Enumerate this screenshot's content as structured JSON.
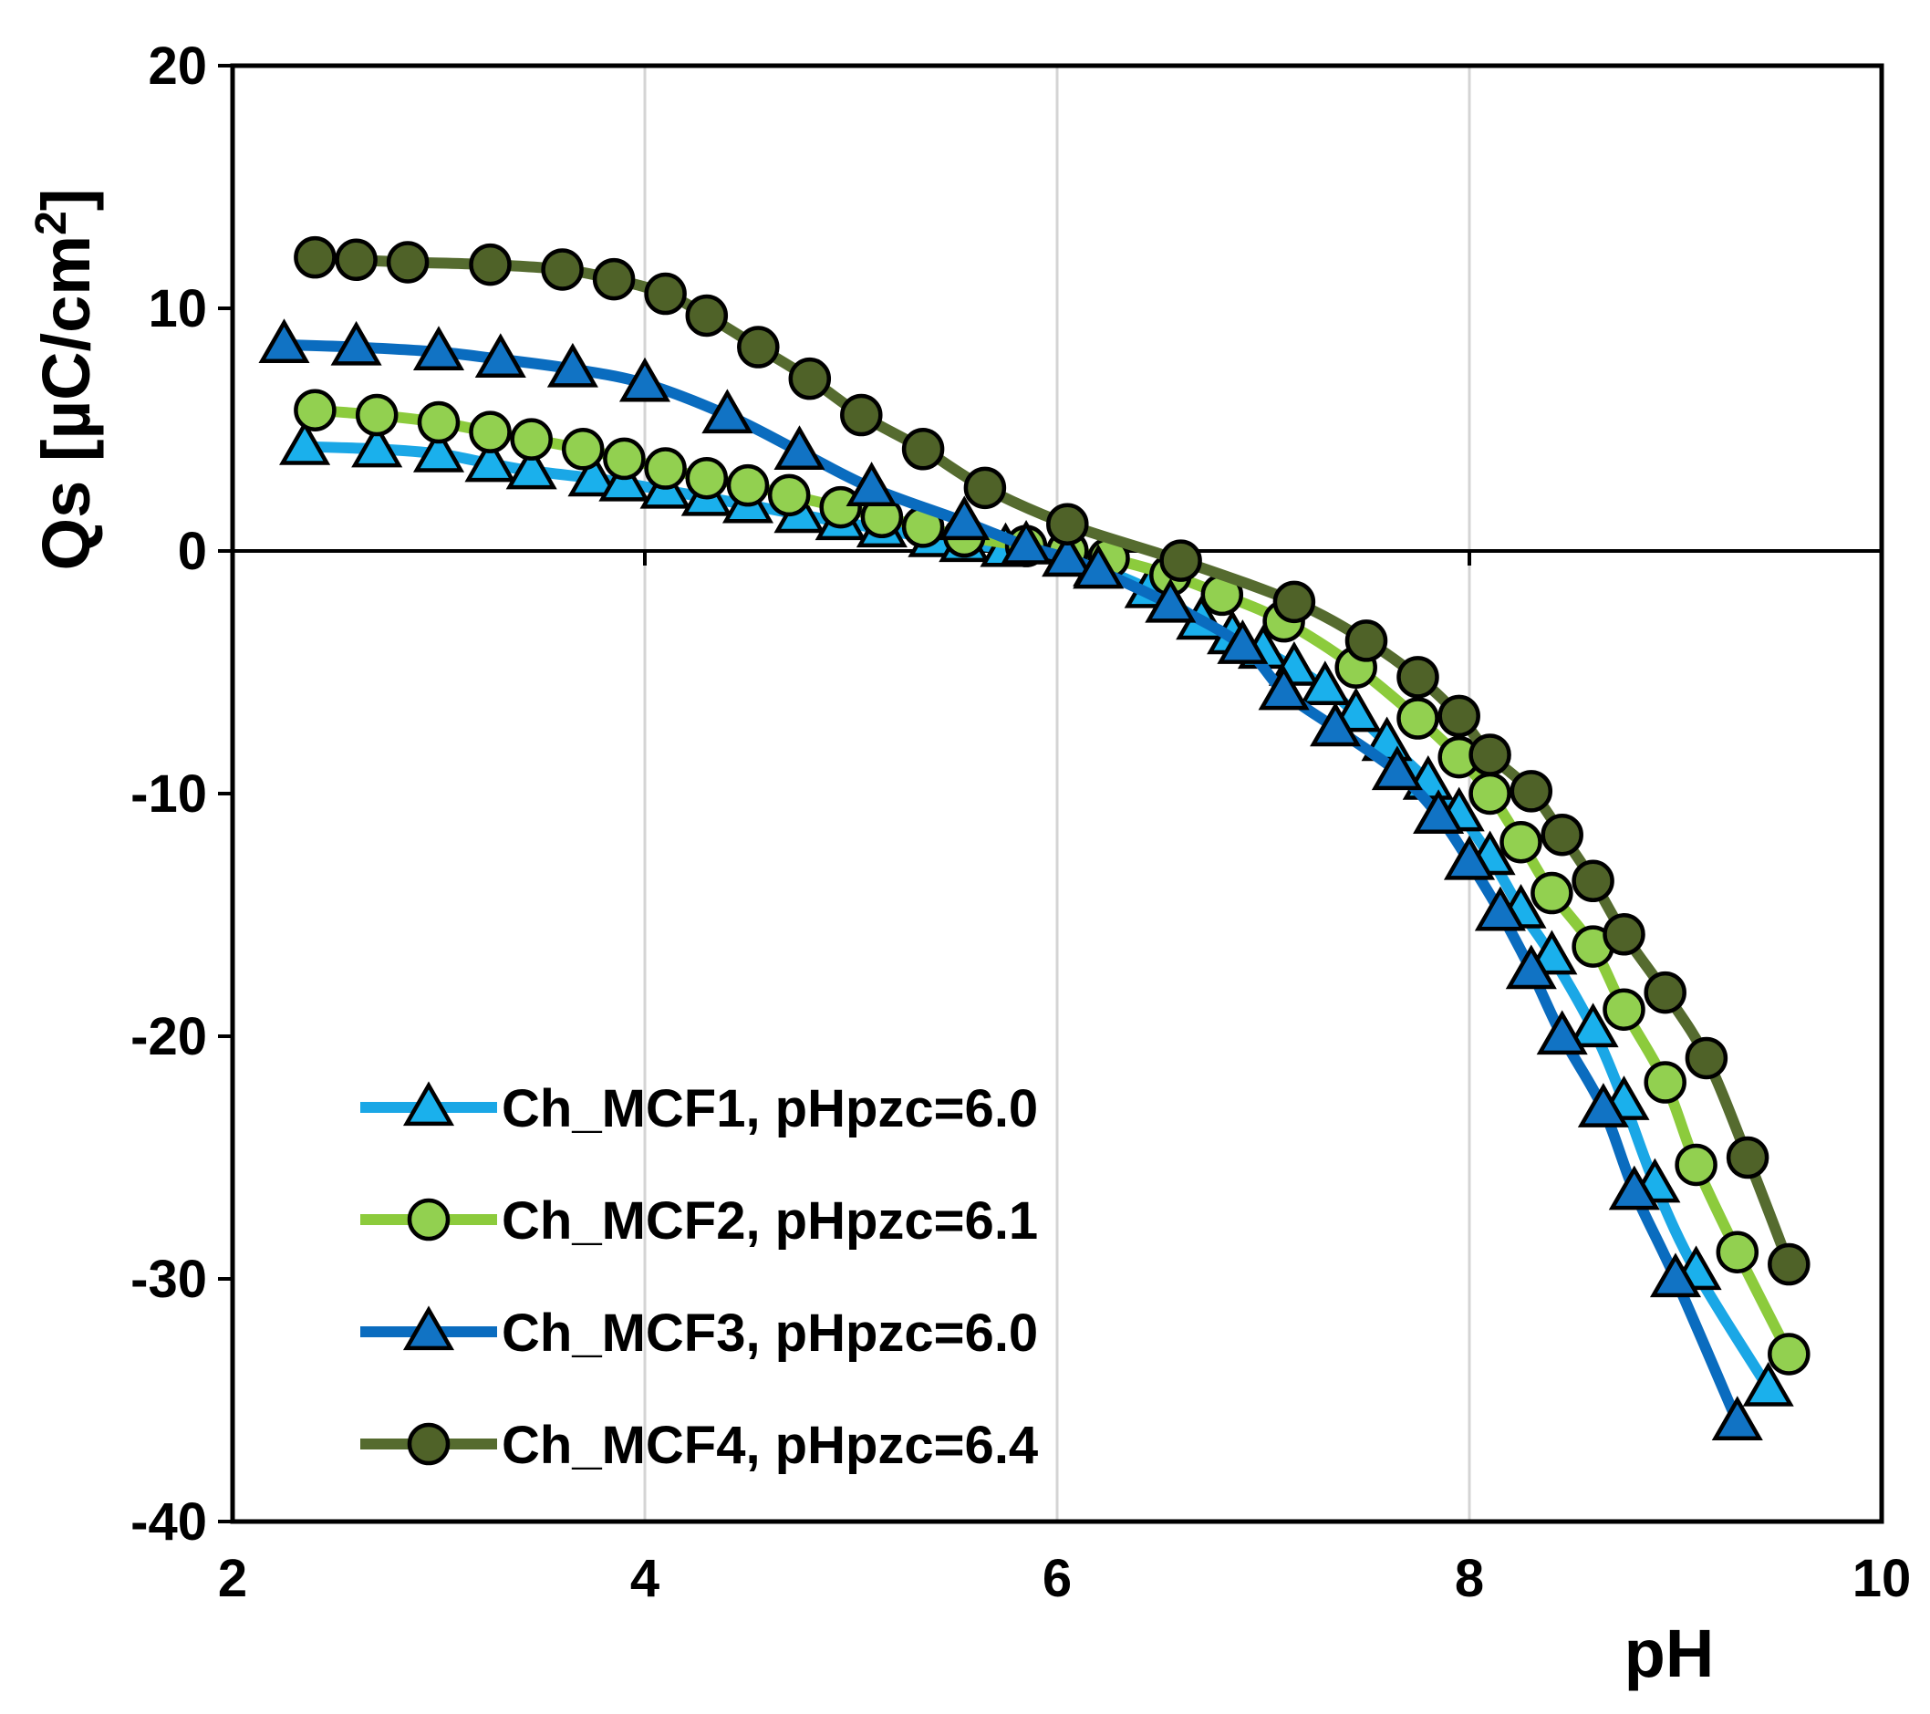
{
  "chart_data": {
    "type": "line",
    "title": "",
    "xlabel": "pH",
    "ylabel": "Qs [µC/cm²]",
    "ylabel_parts": {
      "base": "Qs [µC/cm",
      "sup": "2",
      "close": "]"
    },
    "xlim": [
      2,
      10
    ],
    "ylim": [
      -40,
      20
    ],
    "x_ticks": [
      2,
      4,
      6,
      8,
      10
    ],
    "y_ticks": [
      -40,
      -30,
      -20,
      -10,
      0,
      10,
      20
    ],
    "x_tick_labels": [
      "2",
      "4",
      "6",
      "8",
      "10"
    ],
    "y_tick_labels": [
      "-40",
      "-30",
      "-20",
      "-10",
      "0",
      "10",
      "20"
    ],
    "grid": "vertical",
    "legend_position": "bottom-left",
    "series": [
      {
        "name": "Ch_MCF1, pHpzc=6.0",
        "marker": "triangle",
        "line_color": "#1aa7e6",
        "marker_fill": "#1ab0ec",
        "x": [
          2.35,
          2.7,
          3.0,
          3.25,
          3.45,
          3.75,
          3.9,
          4.1,
          4.3,
          4.5,
          4.75,
          4.95,
          5.15,
          5.4,
          5.55,
          5.75,
          6.05,
          6.2,
          6.45,
          6.7,
          6.85,
          7.0,
          7.15,
          7.3,
          7.45,
          7.6,
          7.8,
          7.95,
          8.1,
          8.25,
          8.4,
          8.6,
          8.75,
          8.9,
          9.1,
          9.45
        ],
        "y": [
          4.3,
          4.2,
          4.0,
          3.6,
          3.3,
          3.0,
          2.8,
          2.5,
          2.2,
          1.9,
          1.5,
          1.2,
          0.9,
          0.5,
          0.3,
          0.1,
          -0.3,
          -0.7,
          -1.6,
          -2.9,
          -3.5,
          -4.1,
          -4.8,
          -5.6,
          -6.7,
          -7.9,
          -9.5,
          -10.8,
          -12.6,
          -14.8,
          -16.7,
          -19.7,
          -22.7,
          -26.1,
          -29.7,
          -34.5
        ]
      },
      {
        "name": "Ch_MCF2, pHpzc=6.1",
        "marker": "circle",
        "line_color": "#8ccb3c",
        "marker_fill": "#92d050",
        "x": [
          2.4,
          2.7,
          3.0,
          3.25,
          3.45,
          3.7,
          3.9,
          4.1,
          4.3,
          4.5,
          4.7,
          4.95,
          5.15,
          5.35,
          5.55,
          5.85,
          6.05,
          6.25,
          6.55,
          6.8,
          7.1,
          7.45,
          7.75,
          7.95,
          8.1,
          8.25,
          8.4,
          8.6,
          8.75,
          8.95,
          9.1,
          9.3,
          9.55
        ],
        "y": [
          5.8,
          5.6,
          5.3,
          4.9,
          4.6,
          4.2,
          3.8,
          3.4,
          3.0,
          2.7,
          2.3,
          1.8,
          1.4,
          1.0,
          0.6,
          0.2,
          0.0,
          -0.3,
          -1.0,
          -1.8,
          -2.9,
          -4.8,
          -6.9,
          -8.5,
          -10.0,
          -12.0,
          -14.1,
          -16.3,
          -18.9,
          -21.9,
          -25.3,
          -28.9,
          -33.1
        ]
      },
      {
        "name": "Ch_MCF3, pHpzc=6.0",
        "marker": "triangle",
        "line_color": "#0a6cbf",
        "marker_fill": "#1173c4",
        "x": [
          2.25,
          2.6,
          3.0,
          3.3,
          3.65,
          4.0,
          4.4,
          4.75,
          5.1,
          5.55,
          5.85,
          6.05,
          6.2,
          6.55,
          6.9,
          7.1,
          7.35,
          7.65,
          7.85,
          8.0,
          8.15,
          8.3,
          8.45,
          8.65,
          8.8,
          9.0,
          9.3
        ],
        "y": [
          8.5,
          8.4,
          8.2,
          7.9,
          7.5,
          6.9,
          5.6,
          4.1,
          2.6,
          1.2,
          0.2,
          -0.3,
          -0.8,
          -2.2,
          -3.9,
          -5.8,
          -7.3,
          -9.1,
          -10.9,
          -12.8,
          -14.9,
          -17.3,
          -20.0,
          -23.0,
          -26.4,
          -30.0,
          -35.9
        ]
      },
      {
        "name": "Ch_MCF4, pHpzc=6.4",
        "marker": "circle",
        "line_color": "#556b2f",
        "marker_fill": "#4f6228",
        "x": [
          2.4,
          2.6,
          2.85,
          3.25,
          3.6,
          3.85,
          4.1,
          4.3,
          4.55,
          4.8,
          5.05,
          5.35,
          5.65,
          6.05,
          6.6,
          7.15,
          7.5,
          7.75,
          7.95,
          8.1,
          8.3,
          8.45,
          8.6,
          8.75,
          8.95,
          9.15,
          9.35,
          9.55
        ],
        "y": [
          12.1,
          12.0,
          11.9,
          11.8,
          11.6,
          11.2,
          10.6,
          9.7,
          8.4,
          7.1,
          5.6,
          4.2,
          2.6,
          1.1,
          -0.4,
          -2.1,
          -3.7,
          -5.2,
          -6.8,
          -8.4,
          -9.9,
          -11.7,
          -13.6,
          -15.8,
          -18.2,
          -20.9,
          -25.0,
          -29.4
        ]
      }
    ]
  }
}
